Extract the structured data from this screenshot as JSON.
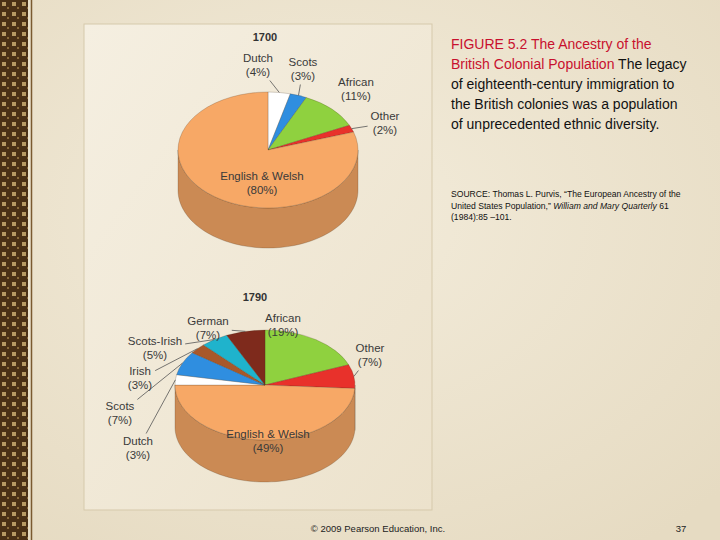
{
  "chart_data": [
    {
      "type": "pie",
      "title": "1700",
      "categories": [
        "Dutch",
        "Scots",
        "African",
        "Other",
        "English & Welsh"
      ],
      "values": [
        4,
        3,
        11,
        2,
        80
      ],
      "value_labels": [
        "(4%)",
        "(3%)",
        "(11%)",
        "(2%)",
        "(80%)"
      ],
      "colors": [
        "#ffffff",
        "#2f8ee0",
        "#8fd13f",
        "#e8312b",
        "#f7a866"
      ],
      "data_labels": true
    },
    {
      "type": "pie",
      "title": "1790",
      "categories": [
        "African",
        "Other",
        "English & Welsh",
        "Dutch",
        "Scots",
        "Irish",
        "Scots-Irish",
        "German"
      ],
      "values": [
        19,
        7,
        49,
        3,
        7,
        3,
        5,
        7
      ],
      "value_labels": [
        "(19%)",
        "(7%)",
        "(49%)",
        "(3%)",
        "(7%)",
        "(3%)",
        "(5%)",
        "(7%)"
      ],
      "colors": [
        "#8fd13f",
        "#e8312b",
        "#f7a866",
        "#ffffff",
        "#2f8ee0",
        "#a8582a",
        "#1fb3cc",
        "#7e2a1c"
      ],
      "data_labels": true
    }
  ],
  "figure": {
    "number": "FIGURE 5.2",
    "title": "The Ancestry of the British Colonial Population",
    "caption": "The legacy of eighteenth-century immigration to the British colonies was a population of unprecedented ethnic diversity."
  },
  "source": {
    "prefix": "SOURCE: Thomas L. Purvis, “The European Ancestry of the United States Population,”",
    "journal": "William and Mary Quarterly",
    "citation": "61 (1984):85 –101."
  },
  "footer": {
    "copyright": "© 2009 Pearson Education, Inc.",
    "page": 37
  }
}
